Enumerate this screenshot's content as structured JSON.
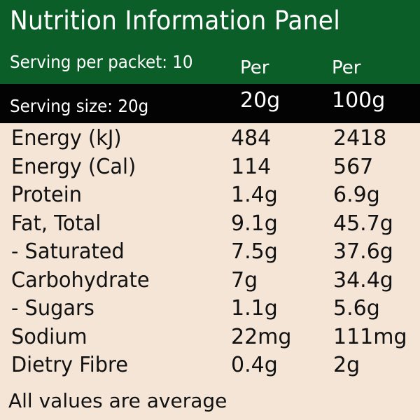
{
  "panel": {
    "title": "Nutrition Information Panel",
    "servings_per_packet": "Serving per packet: 10",
    "serving_size": "Serving size: 20g",
    "columns": [
      {
        "top": "Per",
        "bottom": "20g"
      },
      {
        "top": "Per",
        "bottom": "100g"
      }
    ],
    "rows": [
      {
        "name": "Energy (kJ)",
        "per_serving": "484",
        "per_100g": "2418"
      },
      {
        "name": "Energy (Cal)",
        "per_serving": "114",
        "per_100g": "567"
      },
      {
        "name": "Protein",
        "per_serving": "1.4g",
        "per_100g": "6.9g"
      },
      {
        "name": "Fat, Total",
        "per_serving": "9.1g",
        "per_100g": "45.7g"
      },
      {
        "name": " - Saturated",
        "per_serving": "7.5g",
        "per_100g": "37.6g"
      },
      {
        "name": "Carbohydrate",
        "per_serving": "7g",
        "per_100g": "34.4g"
      },
      {
        "name": " - Sugars",
        "per_serving": "1.1g",
        "per_100g": "5.6g"
      },
      {
        "name": "Sodium",
        "per_serving": "22mg",
        "per_100g": "111mg"
      },
      {
        "name": "Dietry Fibre",
        "per_serving": "0.4g",
        "per_100g": "2g"
      }
    ],
    "footer": "All values are average"
  },
  "colors": {
    "header_green": "#0b5e27",
    "serving_bar_black": "#030303",
    "background_cream": "#f4e5d7",
    "text_dark": "#111111",
    "text_light": "#ffffff"
  }
}
